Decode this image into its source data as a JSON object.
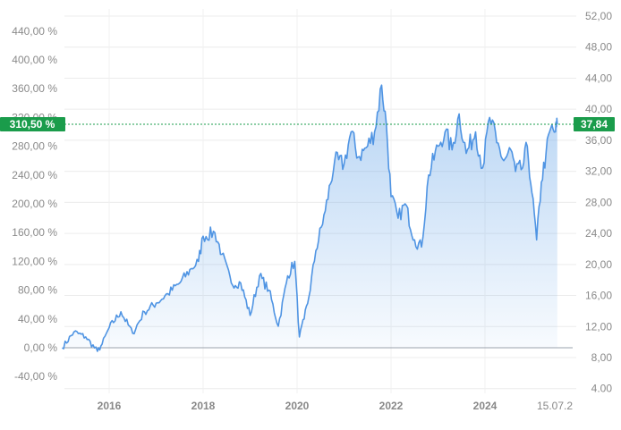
{
  "chart_data": {
    "type": "area",
    "left_axis": {
      "ticks": [
        "-40,00 %",
        "0,00 %",
        "40,00 %",
        "80,00 %",
        "120,00 %",
        "160,00 %",
        "200,00 %",
        "240,00 %",
        "280,00 %",
        "320,00 %",
        "360,00 %",
        "400,00 %",
        "440,00 %"
      ],
      "range": [
        -60,
        470
      ],
      "unit": "%"
    },
    "right_axis": {
      "ticks": [
        "4.00",
        "8,00",
        "12,00",
        "16,00",
        "20,00",
        "24,00",
        "28,00",
        "32,00",
        "36,00",
        "40,00",
        "44,00",
        "48,00",
        "52,00"
      ],
      "range": [
        4,
        52
      ]
    },
    "x_axis": {
      "ticks": [
        "2016",
        "2018",
        "2020",
        "2022",
        "2024",
        "15.07.2"
      ]
    },
    "current": {
      "percent_label": "310,50 %",
      "price_label": "37,84",
      "percent": 310.5,
      "price": 37.84
    },
    "series": [
      {
        "x": [
          2015.0,
          2015.25,
          2015.5,
          2015.75,
          2015.85,
          2016.0,
          2016.25,
          2016.5,
          2016.75,
          2017.0,
          2017.25,
          2017.5,
          2017.75,
          2017.9,
          2018.0,
          2018.25,
          2018.4,
          2018.6,
          2018.8,
          2019.0,
          2019.2,
          2019.4,
          2019.6,
          2019.8,
          2019.95,
          2020.05,
          2020.15,
          2020.25,
          2020.4,
          2020.6,
          2020.8,
          2021.0,
          2021.15,
          2021.3,
          2021.5,
          2021.65,
          2021.8,
          2021.9,
          2022.0,
          2022.15,
          2022.3,
          2022.5,
          2022.65,
          2022.8,
          2023.0,
          2023.15,
          2023.3,
          2023.45,
          2023.6,
          2023.8,
          2023.95,
          2024.1,
          2024.25,
          2024.4,
          2024.55,
          2024.65,
          2024.8,
          2024.9,
          2025.0,
          2025.1,
          2025.2,
          2025.3,
          2025.4,
          2025.5,
          2025.54
        ],
        "values": [
          0,
          22,
          15,
          -5,
          5,
          28,
          50,
          20,
          50,
          62,
          75,
          90,
          110,
          120,
          155,
          160,
          130,
          90,
          90,
          45,
          100,
          80,
          30,
          100,
          120,
          15,
          40,
          70,
          135,
          190,
          260,
          255,
          300,
          265,
          280,
          300,
          365,
          310,
          210,
          180,
          200,
          150,
          140,
          240,
          280,
          300,
          275,
          325,
          270,
          300,
          250,
          320,
          285,
          260,
          275,
          245,
          250,
          280,
          215,
          150,
          230,
          270,
          305,
          300,
          310.5
        ]
      }
    ]
  }
}
